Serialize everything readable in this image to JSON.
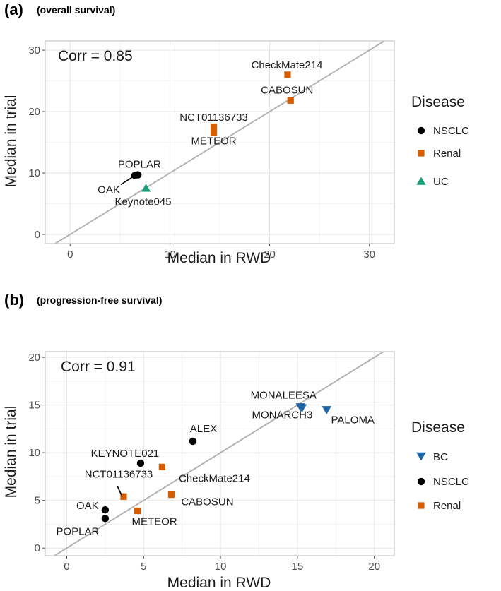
{
  "colors": {
    "NSCLC": "#000000",
    "Renal": "#d55e00",
    "UC": "#1b9e77",
    "BC": "#1f66a8",
    "identity_line": "#b3b3b3",
    "grid": "#e6e6e6",
    "panel_border": "#c8c8c8"
  },
  "chart_data": [
    {
      "type": "scatter",
      "panel_letter": "(a)",
      "title": "(overall survival)",
      "xlabel": "Median in RWD",
      "ylabel": "Median in trial",
      "xlim": [
        -2.5,
        32.5
      ],
      "ylim": [
        -1.5,
        31.5
      ],
      "xticks": [
        0,
        10,
        20,
        30
      ],
      "yticks": [
        0,
        10,
        20,
        30
      ],
      "annotation": "Corr = 0.85",
      "legend_title": "Disease",
      "legend": [
        {
          "name": "NSCLC",
          "shape": "circle"
        },
        {
          "name": "Renal",
          "shape": "square"
        },
        {
          "name": "UC",
          "shape": "triangle-up"
        }
      ],
      "identity_line": true,
      "points": [
        {
          "label": "CheckMate214",
          "disease": "Renal",
          "x": 21.8,
          "y": 26.0
        },
        {
          "label": "CABOSUN",
          "disease": "Renal",
          "x": 22.1,
          "y": 21.8
        },
        {
          "label": "NCT01136733",
          "disease": "Renal",
          "x": 14.4,
          "y": 17.5
        },
        {
          "label": "METEOR",
          "disease": "Renal",
          "x": 14.4,
          "y": 16.6
        },
        {
          "label": "POPLAR",
          "disease": "NSCLC",
          "x": 6.8,
          "y": 9.7
        },
        {
          "label": "OAK",
          "disease": "NSCLC",
          "x": 6.5,
          "y": 9.6
        },
        {
          "label": "Keynote045",
          "disease": "UC",
          "x": 7.6,
          "y": 7.5
        }
      ]
    },
    {
      "type": "scatter",
      "panel_letter": "(b)",
      "title": "(progression-free survival)",
      "xlabel": "Median in RWD",
      "ylabel": "Median in trial",
      "xlim": [
        -1.4,
        21.3
      ],
      "ylim": [
        -0.8,
        20.6
      ],
      "xticks": [
        0,
        5,
        10,
        15,
        20
      ],
      "yticks": [
        0,
        5,
        10,
        15,
        20
      ],
      "annotation": "Corr = 0.91",
      "legend_title": "Disease",
      "legend": [
        {
          "name": "BC",
          "shape": "triangle-down"
        },
        {
          "name": "NSCLC",
          "shape": "circle"
        },
        {
          "name": "Renal",
          "shape": "square"
        }
      ],
      "identity_line": true,
      "points": [
        {
          "label": "MONALEESA",
          "disease": "BC",
          "x": 15.2,
          "y": 14.8
        },
        {
          "label": "MONARCH3",
          "disease": "BC",
          "x": 15.3,
          "y": 14.7
        },
        {
          "label": "PALOMA",
          "disease": "BC",
          "x": 16.9,
          "y": 14.5
        },
        {
          "label": "ALEX",
          "disease": "NSCLC",
          "x": 8.2,
          "y": 11.2
        },
        {
          "label": "KEYNOTE021",
          "disease": "NSCLC",
          "x": 4.8,
          "y": 8.9
        },
        {
          "label": "CheckMate214",
          "disease": "Renal",
          "x": 6.2,
          "y": 8.5
        },
        {
          "label": "CABOSUN",
          "disease": "Renal",
          "x": 6.8,
          "y": 5.6
        },
        {
          "label": "NCT01136733",
          "disease": "Renal",
          "x": 3.7,
          "y": 5.4
        },
        {
          "label": "OAK",
          "disease": "NSCLC",
          "x": 2.5,
          "y": 4.0
        },
        {
          "label": "POPLAR",
          "disease": "NSCLC",
          "x": 2.5,
          "y": 3.1
        },
        {
          "label": "METEOR",
          "disease": "Renal",
          "x": 4.6,
          "y": 3.9
        }
      ]
    }
  ]
}
